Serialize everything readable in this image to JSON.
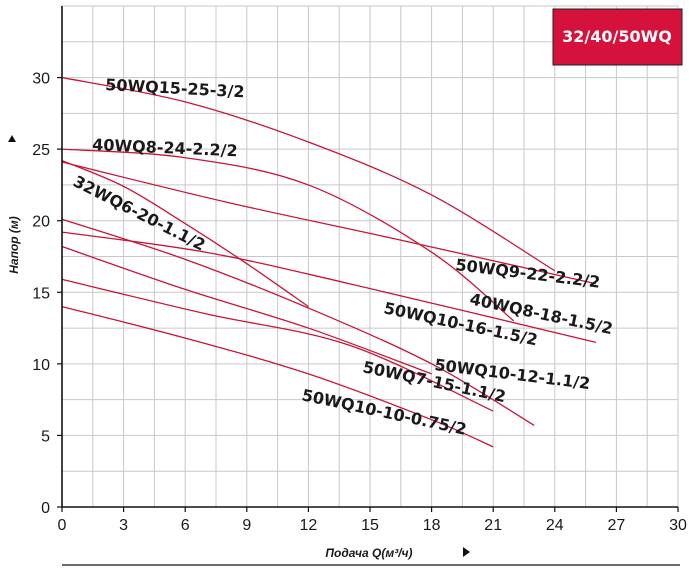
{
  "chart_data": {
    "type": "line",
    "badge": "32/40/50WQ",
    "xlabel": "Подача Q(м³/ч)",
    "ylabel": "Напор (м)",
    "xlim": [
      0,
      30
    ],
    "ylim": [
      0,
      35
    ],
    "xticks": [
      "0",
      "3",
      "6",
      "9",
      "12",
      "15",
      "18",
      "21",
      "24",
      "27",
      "30"
    ],
    "yticks": [
      "0",
      "5",
      "10",
      "15",
      "20",
      "25",
      "30"
    ],
    "grid": true,
    "colors": {
      "curve": "#c8163a",
      "badge": "#d4123c",
      "grid": "#c8c8c8",
      "axis": "#111111"
    },
    "series": [
      {
        "name": "50WQ15-25-3/2",
        "x": [
          0,
          6,
          12,
          18,
          24
        ],
        "y": [
          30,
          28.3,
          25.5,
          21.8,
          16.5
        ]
      },
      {
        "name": "40WQ8-24-2.2/2",
        "x": [
          0,
          6,
          12,
          18,
          22
        ],
        "y": [
          25,
          24.4,
          22.5,
          17.8,
          13
        ]
      },
      {
        "name": "32WQ6-20-1.1/2",
        "x": [
          0,
          3,
          6,
          9,
          12
        ],
        "y": [
          24.2,
          22.4,
          19.8,
          17,
          14
        ]
      },
      {
        "name": "50WQ9-22-2.2/2",
        "x": [
          0,
          8,
          16,
          26
        ],
        "y": [
          24.1,
          21.3,
          18.8,
          15.6
        ]
      },
      {
        "name": "40WQ8-18-1.5/2",
        "x": [
          0,
          7,
          14,
          26
        ],
        "y": [
          19.2,
          17.8,
          15.6,
          11.5
        ]
      },
      {
        "name": "50WQ10-16-1.5/2",
        "x": [
          0,
          6,
          12,
          18,
          23
        ],
        "y": [
          20.1,
          17.3,
          13.9,
          10,
          5.7
        ]
      },
      {
        "name": "50WQ10-12-1.1/2",
        "x": [
          0,
          6,
          12,
          18
        ],
        "y": [
          18.2,
          15.2,
          12.5,
          9.3
        ]
      },
      {
        "name": "50WQ7-15-1.1/2",
        "x": [
          0,
          7,
          14,
          21
        ],
        "y": [
          15.9,
          13.5,
          11.3,
          6.7
        ]
      },
      {
        "name": "50WQ10-10-0.75/2",
        "x": [
          0,
          6,
          12,
          18,
          21
        ],
        "y": [
          14,
          11.8,
          9.3,
          6.1,
          4.2
        ]
      }
    ]
  }
}
